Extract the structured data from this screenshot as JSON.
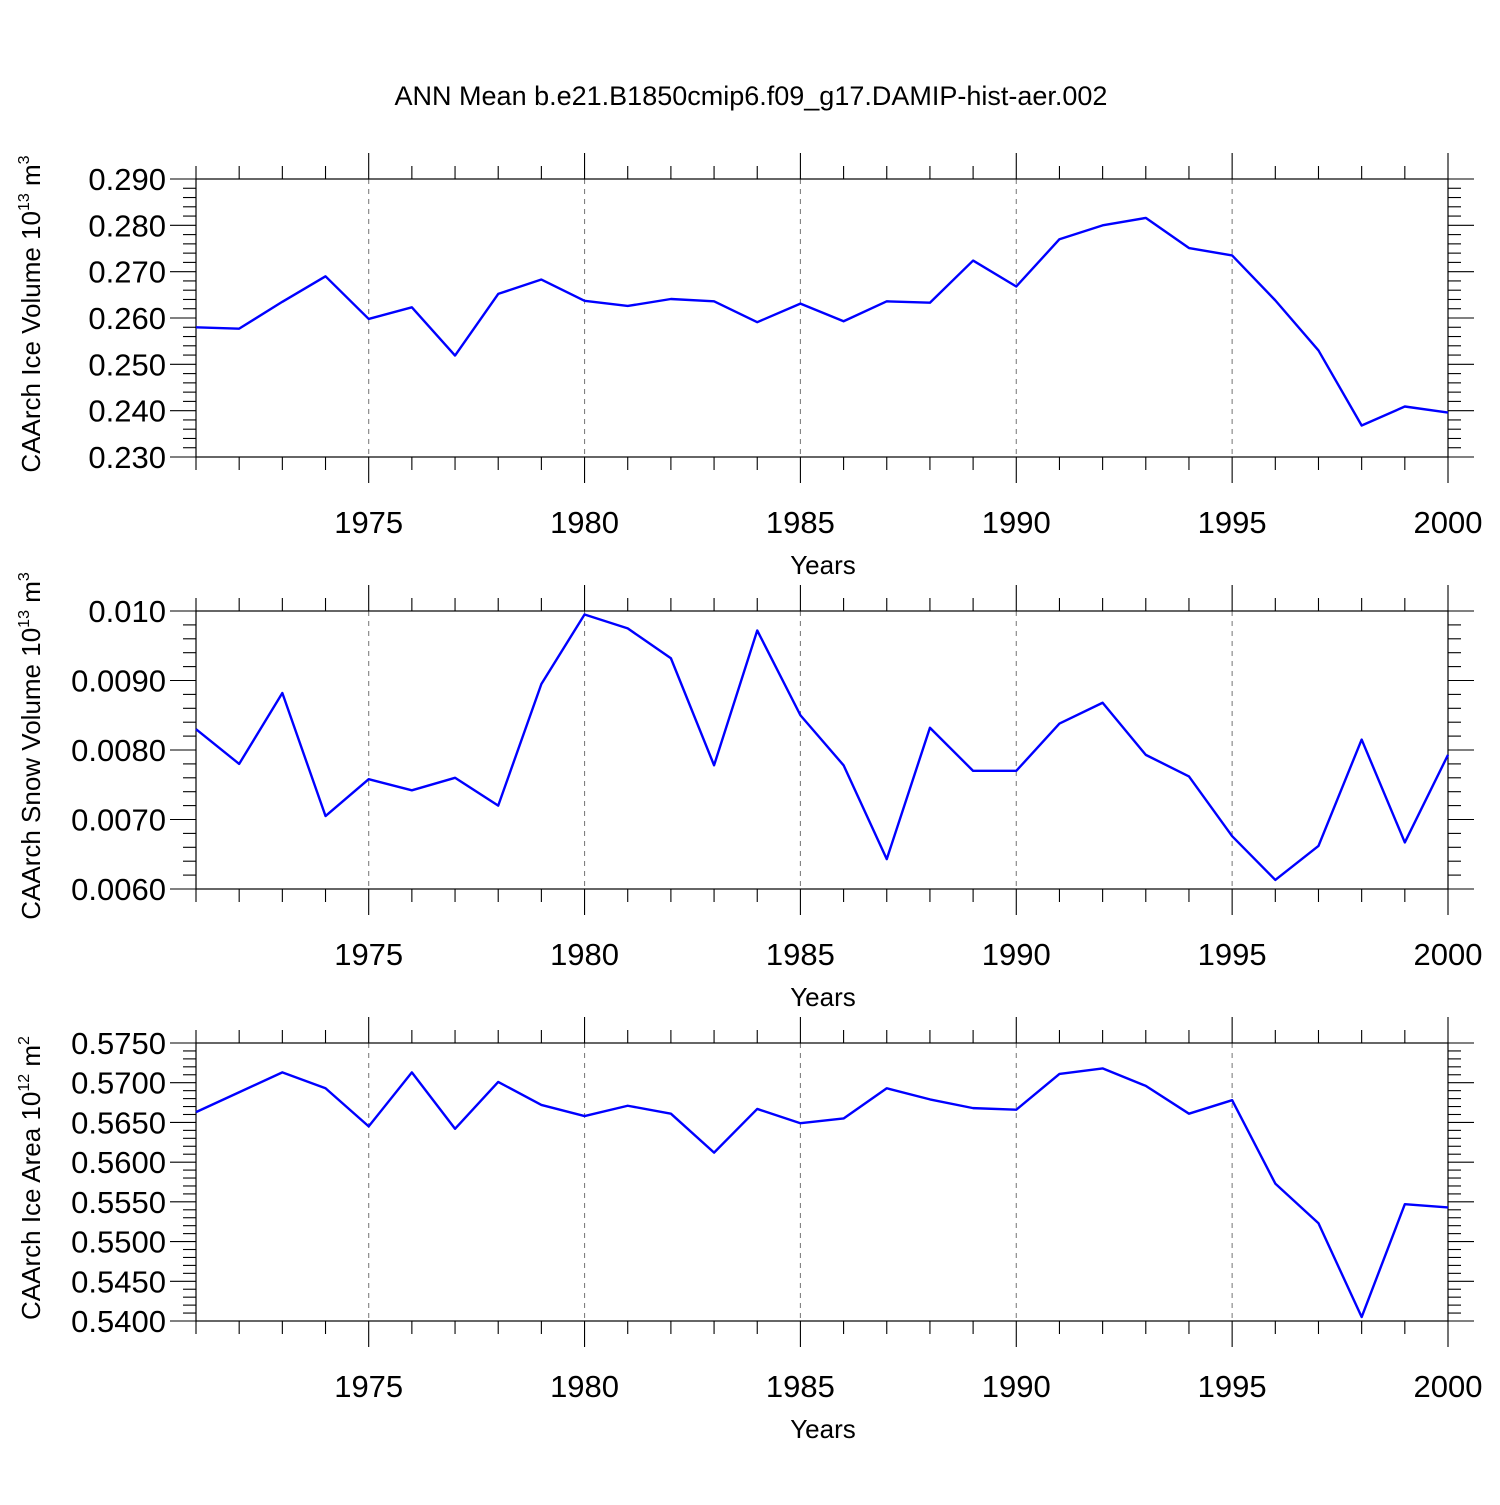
{
  "title": "ANN Mean b.e21.B1850cmip6.f09_g17.DAMIP-hist-aer.002",
  "colors": {
    "line": "#0000ff"
  },
  "chart_data": [
    {
      "type": "line",
      "xlabel": "Years",
      "ylabel": "CAArch Ice Volume 10",
      "ylabel_exp": "13",
      "ylabel_unit": "m",
      "ylabel_unit_exp": "3",
      "xlim": [
        1971,
        2000
      ],
      "ylim": [
        0.23,
        0.29
      ],
      "yticks": [
        0.23,
        0.24,
        0.25,
        0.26,
        0.27,
        0.28,
        0.29
      ],
      "yticklabels": [
        "0.230",
        "0.240",
        "0.250",
        "0.260",
        "0.270",
        "0.280",
        "0.290"
      ],
      "xticks": [
        1975,
        1980,
        1985,
        1990,
        1995,
        2000
      ],
      "xticklabels": [
        "1975",
        "1980",
        "1985",
        "1990",
        "1995",
        "2000"
      ],
      "grid": "x-dashed",
      "x": [
        1971,
        1972,
        1973,
        1974,
        1975,
        1976,
        1977,
        1978,
        1979,
        1980,
        1981,
        1982,
        1983,
        1984,
        1985,
        1986,
        1987,
        1988,
        1989,
        1990,
        1991,
        1992,
        1993,
        1994,
        1995,
        1996,
        1997,
        1998,
        1999,
        2000
      ],
      "values": [
        0.258,
        0.2577,
        0.2635,
        0.269,
        0.2598,
        0.2623,
        0.2519,
        0.2652,
        0.2683,
        0.2637,
        0.2626,
        0.2641,
        0.2636,
        0.2591,
        0.2631,
        0.2593,
        0.2636,
        0.2633,
        0.2724,
        0.2668,
        0.277,
        0.28,
        0.2816,
        0.2751,
        0.2735,
        0.2638,
        0.253,
        0.2368,
        0.2409,
        0.2396
      ]
    },
    {
      "type": "line",
      "xlabel": "Years",
      "ylabel": "CAArch Snow Volume 10",
      "ylabel_exp": "13",
      "ylabel_unit": "m",
      "ylabel_unit_exp": "3",
      "xlim": [
        1971,
        2000
      ],
      "ylim": [
        0.006,
        0.01
      ],
      "yticks": [
        0.006,
        0.007,
        0.008,
        0.009,
        0.01
      ],
      "yticklabels": [
        "0.0060",
        "0.0070",
        "0.0080",
        "0.0090",
        "0.010"
      ],
      "xticks": [
        1975,
        1980,
        1985,
        1990,
        1995,
        2000
      ],
      "xticklabels": [
        "1975",
        "1980",
        "1985",
        "1990",
        "1995",
        "2000"
      ],
      "grid": "x-dashed",
      "x": [
        1971,
        1972,
        1973,
        1974,
        1975,
        1976,
        1977,
        1978,
        1979,
        1980,
        1981,
        1982,
        1983,
        1984,
        1985,
        1986,
        1987,
        1988,
        1989,
        1990,
        1991,
        1992,
        1993,
        1994,
        1995,
        1996,
        1997,
        1998,
        1999,
        2000
      ],
      "values": [
        0.0083,
        0.0078,
        0.00882,
        0.00705,
        0.00758,
        0.00742,
        0.0076,
        0.0072,
        0.00895,
        0.00995,
        0.00975,
        0.00932,
        0.00778,
        0.00972,
        0.0085,
        0.00778,
        0.00643,
        0.00832,
        0.0077,
        0.0077,
        0.00838,
        0.00868,
        0.00793,
        0.00762,
        0.00676,
        0.00613,
        0.00662,
        0.00815,
        0.00667,
        0.00793
      ]
    },
    {
      "type": "line",
      "xlabel": "Years",
      "ylabel": "CAArch Ice Area 10",
      "ylabel_exp": "12",
      "ylabel_unit": "m",
      "ylabel_unit_exp": "2",
      "xlim": [
        1971,
        2000
      ],
      "ylim": [
        0.54,
        0.575
      ],
      "yticks": [
        0.54,
        0.545,
        0.55,
        0.555,
        0.56,
        0.565,
        0.57,
        0.575
      ],
      "yticklabels": [
        "0.5400",
        "0.5450",
        "0.5500",
        "0.5550",
        "0.5600",
        "0.5650",
        "0.5700",
        "0.5750"
      ],
      "xticks": [
        1975,
        1980,
        1985,
        1990,
        1995,
        2000
      ],
      "xticklabels": [
        "1975",
        "1980",
        "1985",
        "1990",
        "1995",
        "2000"
      ],
      "grid": "x-dashed",
      "x": [
        1971,
        1972,
        1973,
        1974,
        1975,
        1976,
        1977,
        1978,
        1979,
        1980,
        1981,
        1982,
        1983,
        1984,
        1985,
        1986,
        1987,
        1988,
        1989,
        1990,
        1991,
        1992,
        1993,
        1994,
        1995,
        1996,
        1997,
        1998,
        1999,
        2000
      ],
      "values": [
        0.5663,
        0.5688,
        0.5713,
        0.5693,
        0.5645,
        0.5713,
        0.5642,
        0.5701,
        0.5672,
        0.5658,
        0.5671,
        0.5661,
        0.5612,
        0.5667,
        0.5649,
        0.5655,
        0.5693,
        0.5679,
        0.5668,
        0.5666,
        0.5711,
        0.5718,
        0.5696,
        0.5661,
        0.5678,
        0.5573,
        0.5523,
        0.5405,
        0.5547,
        0.5543
      ]
    }
  ]
}
